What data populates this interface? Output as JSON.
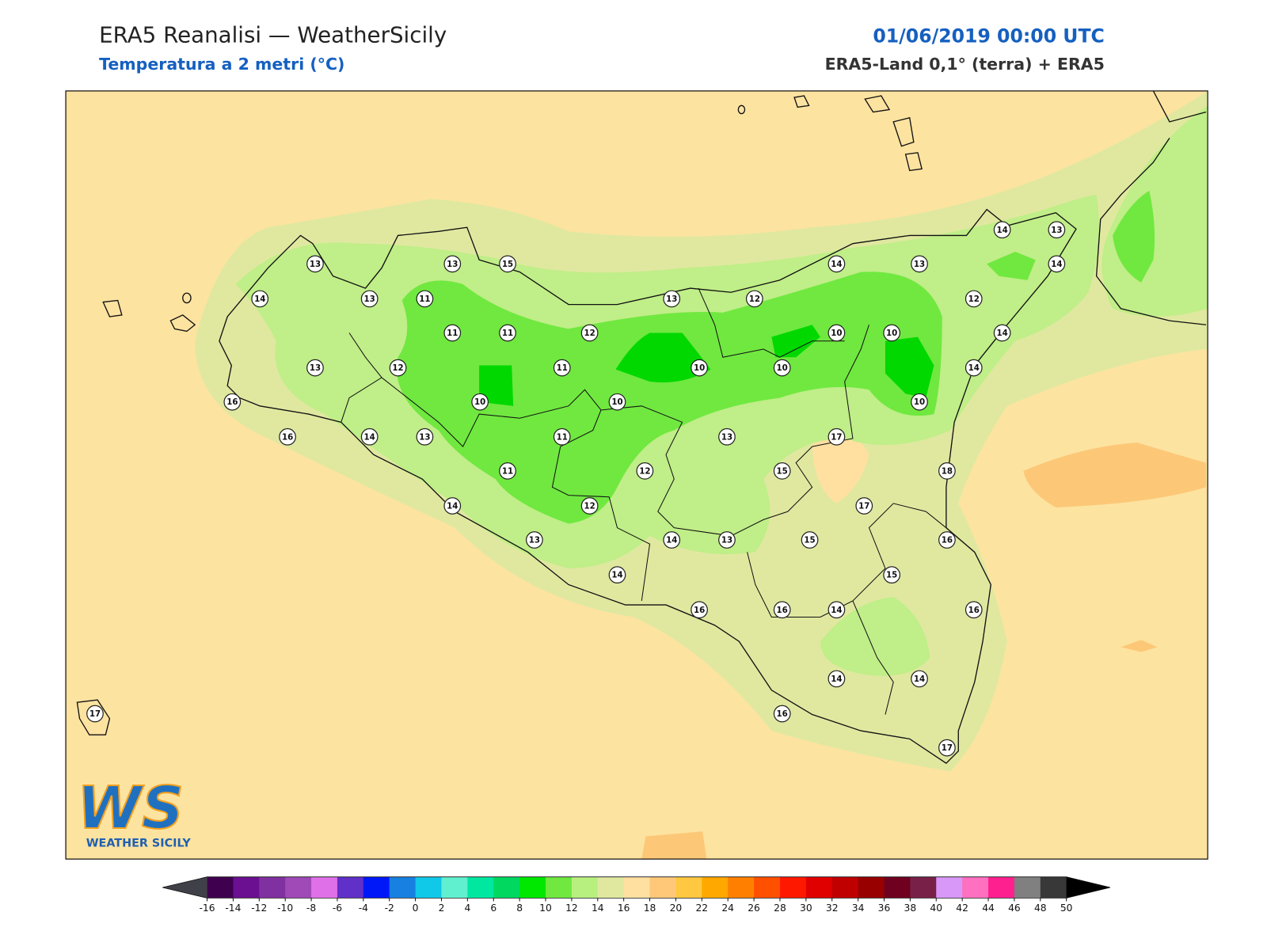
{
  "header": {
    "title": "ERA5 Reanalisi — WeatherSicily",
    "subtitle": "Temperatura a 2 metri (°C)",
    "datetime": "01/06/2019 00:00 UTC",
    "source": "ERA5-Land 0,1° (terra) + ERA5"
  },
  "stations": [
    13,
    13,
    15,
    14,
    13,
    11,
    13,
    12,
    14,
    13,
    14,
    13,
    14,
    12,
    11,
    11,
    12,
    10,
    10,
    14,
    13,
    12,
    11,
    10,
    10,
    14,
    16,
    10,
    10,
    10,
    16,
    14,
    13,
    11,
    13,
    17,
    18,
    11,
    12,
    15,
    14,
    12,
    17,
    13,
    14,
    13,
    15,
    16,
    14,
    15,
    16,
    16,
    14,
    16,
    14,
    14,
    16,
    17,
    17
  ],
  "colorbar": {
    "ticks": [
      -16,
      -14,
      -12,
      -10,
      -8,
      -6,
      -4,
      -2,
      0,
      2,
      4,
      6,
      8,
      10,
      12,
      14,
      16,
      18,
      20,
      22,
      24,
      26,
      28,
      30,
      32,
      34,
      36,
      38,
      40,
      42,
      44,
      46,
      48,
      50
    ],
    "colors": [
      "#400050",
      "#6a1090",
      "#8030a0",
      "#a04ab8",
      "#e070e8",
      "#6030c8",
      "#0018f8",
      "#1880e0",
      "#10c8e8",
      "#60f0d0",
      "#00e8a0",
      "#00d860",
      "#00e800",
      "#70e840",
      "#b8f080",
      "#e0e8a0",
      "#ffe0a0",
      "#ffc878",
      "#ffc840",
      "#ffa800",
      "#ff8000",
      "#ff5000",
      "#ff1800",
      "#e00000",
      "#c00000",
      "#980000",
      "#700020",
      "#782048",
      "#d898f8",
      "#ff70c0",
      "#ff2090",
      "#808080",
      "#383838"
    ],
    "under_color": "#404048",
    "over_color": "#000000"
  },
  "logo": {
    "mark": "WS",
    "text": "WEATHER SICILY"
  }
}
